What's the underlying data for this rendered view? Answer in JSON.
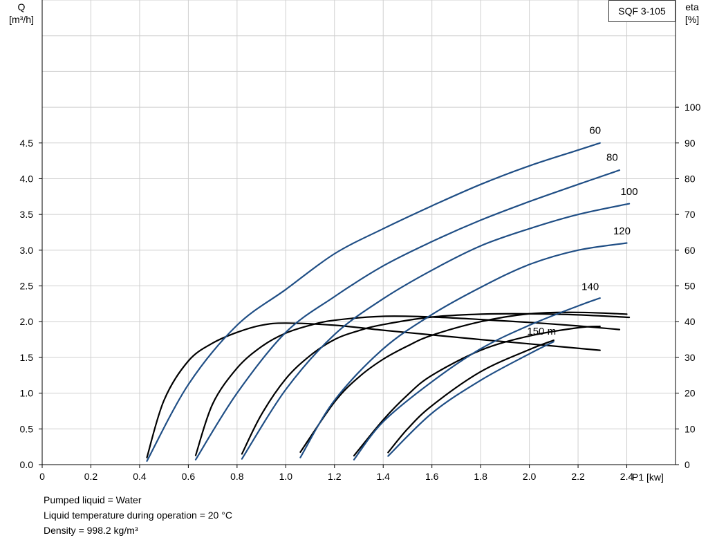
{
  "chart_data": {
    "type": "line",
    "title": "",
    "legend_box": "SQF 3-105",
    "y_left_label": [
      "Q",
      "[m³/h]"
    ],
    "y_right_label": [
      "eta",
      "[%]"
    ],
    "x_label": "P1 [kw]",
    "xlim": [
      0,
      2.6
    ],
    "ylim_left": [
      0,
      6.5
    ],
    "ylim_right": [
      0,
      130
    ],
    "x_ticks": [
      0,
      0.2,
      0.4,
      0.6,
      0.8,
      1.0,
      1.2,
      1.4,
      1.6,
      1.8,
      2.0,
      2.2,
      2.4
    ],
    "x_tick_labels": [
      "0",
      "0.2",
      "0.4",
      "0.6",
      "0.8",
      "1.0",
      "1.2",
      "1.4",
      "1.6",
      "1.8",
      "2.0",
      "2.2",
      "2.4"
    ],
    "y_left_ticks": [
      0,
      0.5,
      1.0,
      1.5,
      2.0,
      2.5,
      3.0,
      3.5,
      4.0,
      4.5
    ],
    "y_left_tick_labels": [
      "0.0",
      "0.5",
      "1.0",
      "1.5",
      "2.0",
      "2.5",
      "3.0",
      "3.5",
      "4.0",
      "4.5"
    ],
    "y_right_ticks": [
      0,
      10,
      20,
      30,
      40,
      50,
      60,
      70,
      80,
      90,
      100
    ],
    "y_right_tick_labels": [
      "0",
      "10",
      "20",
      "30",
      "40",
      "50",
      "60",
      "70",
      "80",
      "90",
      "100"
    ],
    "grid": true,
    "series": [
      {
        "name": "60",
        "kind": "flow",
        "color": "#1f4e85",
        "x": [
          0.43,
          0.6,
          0.8,
          1.0,
          1.2,
          1.4,
          1.6,
          1.8,
          2.0,
          2.2,
          2.29
        ],
        "y": [
          0.05,
          1.12,
          1.95,
          2.45,
          2.95,
          3.3,
          3.62,
          3.92,
          4.18,
          4.4,
          4.5
        ]
      },
      {
        "name": "80",
        "kind": "flow",
        "color": "#1f4e85",
        "x": [
          0.63,
          0.8,
          1.0,
          1.2,
          1.4,
          1.6,
          1.8,
          2.0,
          2.2,
          2.37
        ],
        "y": [
          0.07,
          1.0,
          1.85,
          2.35,
          2.78,
          3.12,
          3.42,
          3.68,
          3.92,
          4.12
        ]
      },
      {
        "name": "100",
        "kind": "flow",
        "color": "#1f4e85",
        "x": [
          0.82,
          1.0,
          1.2,
          1.4,
          1.6,
          1.8,
          2.0,
          2.2,
          2.41
        ],
        "y": [
          0.08,
          1.05,
          1.82,
          2.32,
          2.72,
          3.06,
          3.3,
          3.5,
          3.65
        ]
      },
      {
        "name": "120",
        "kind": "flow",
        "color": "#1f4e85",
        "x": [
          1.06,
          1.2,
          1.4,
          1.6,
          1.8,
          2.0,
          2.2,
          2.4
        ],
        "y": [
          0.1,
          0.9,
          1.62,
          2.1,
          2.48,
          2.8,
          3.0,
          3.1
        ]
      },
      {
        "name": "140",
        "kind": "flow",
        "color": "#1f4e85",
        "x": [
          1.28,
          1.4,
          1.6,
          1.8,
          2.0,
          2.2,
          2.29
        ],
        "y": [
          0.07,
          0.6,
          1.16,
          1.62,
          1.95,
          2.22,
          2.33
        ]
      },
      {
        "name": "150 m",
        "kind": "flow",
        "color": "#1f4e85",
        "x": [
          1.42,
          1.6,
          1.8,
          2.0,
          2.1
        ],
        "y": [
          0.12,
          0.72,
          1.18,
          1.55,
          1.72
        ]
      },
      {
        "name": "eta 60",
        "kind": "eta",
        "color": "#000000",
        "x": [
          0.43,
          0.5,
          0.6,
          0.7,
          0.8,
          0.9,
          1.0,
          1.2,
          1.4,
          1.6,
          1.8,
          2.0,
          2.29
        ],
        "y": [
          2,
          18,
          29,
          34,
          37,
          39,
          39.6,
          39,
          37.6,
          36.3,
          35,
          33.8,
          32
        ]
      },
      {
        "name": "eta 80",
        "kind": "eta",
        "color": "#000000",
        "x": [
          0.63,
          0.7,
          0.8,
          0.9,
          1.0,
          1.1,
          1.2,
          1.4,
          1.6,
          1.8,
          2.0,
          2.2,
          2.37
        ],
        "y": [
          2.6,
          17,
          27,
          33,
          36.8,
          39,
          40.4,
          41.5,
          41.3,
          40.6,
          39.8,
          38.8,
          37.8
        ]
      },
      {
        "name": "eta 100",
        "kind": "eta",
        "color": "#000000",
        "x": [
          0.82,
          0.9,
          1.0,
          1.1,
          1.2,
          1.3,
          1.4,
          1.6,
          1.8,
          2.0,
          2.2,
          2.41
        ],
        "y": [
          3,
          14,
          24,
          30.5,
          35,
          37.5,
          39.2,
          41.3,
          42.1,
          42.2,
          41.9,
          41.2
        ]
      },
      {
        "name": "eta 120",
        "kind": "eta",
        "color": "#000000",
        "x": [
          1.06,
          1.2,
          1.3,
          1.4,
          1.5,
          1.6,
          1.8,
          2.0,
          2.2,
          2.4
        ],
        "y": [
          3.5,
          17.5,
          24.5,
          29.5,
          33.2,
          36.2,
          40,
          42.2,
          42.6,
          42.1
        ]
      },
      {
        "name": "eta 140",
        "kind": "eta",
        "color": "#000000",
        "x": [
          1.28,
          1.4,
          1.5,
          1.6,
          1.8,
          2.0,
          2.2,
          2.29
        ],
        "y": [
          2.5,
          12.5,
          19.5,
          25,
          32,
          36,
          38.3,
          38.7
        ]
      },
      {
        "name": "eta 150 m",
        "kind": "eta",
        "color": "#000000",
        "x": [
          1.42,
          1.5,
          1.6,
          1.8,
          2.0,
          2.1
        ],
        "y": [
          3.4,
          10,
          16.5,
          26,
          32.2,
          34.8
        ]
      }
    ],
    "curve_labels": [
      {
        "text": "60",
        "x": 2.27,
        "y": 4.63
      },
      {
        "text": "80",
        "x": 2.34,
        "y": 4.25
      },
      {
        "text": "100",
        "x": 2.41,
        "y": 3.77
      },
      {
        "text": "120",
        "x": 2.38,
        "y": 3.22
      },
      {
        "text": "140",
        "x": 2.25,
        "y": 2.44
      },
      {
        "text": "150 m",
        "x": 2.05,
        "y": 1.82
      }
    ]
  },
  "notes": {
    "line1": "Pumped liquid = Water",
    "line2": "Liquid temperature during operation = 20 °C",
    "line3": "Density = 998.2 kg/m³"
  }
}
